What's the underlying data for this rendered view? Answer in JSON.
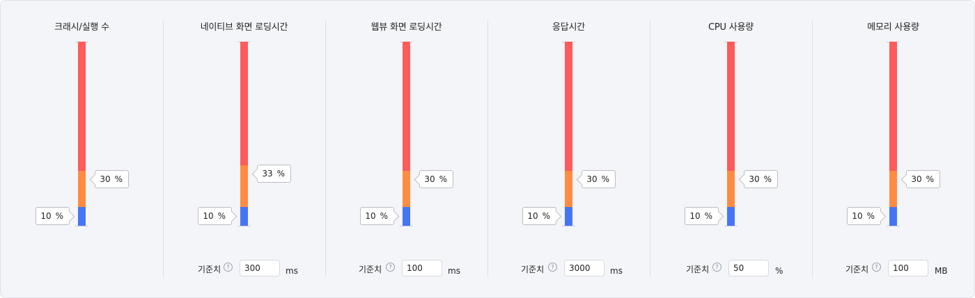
{
  "metrics": [
    {
      "title": "크래시/실행 수",
      "orange_value": "30",
      "blue_value": "10",
      "unit_pct": "%",
      "threshold": null
    },
    {
      "title": "네이티브 화면 로딩시간",
      "orange_value": "33",
      "blue_value": "10",
      "unit_pct": "%",
      "threshold": {
        "label": "기준치",
        "help": "?",
        "value": "300",
        "unit": "ms"
      }
    },
    {
      "title": "웹뷰 화면 로딩시간",
      "orange_value": "30",
      "blue_value": "10",
      "unit_pct": "%",
      "threshold": {
        "label": "기준치",
        "help": "?",
        "value": "100",
        "unit": "ms"
      }
    },
    {
      "title": "응답시간",
      "orange_value": "30",
      "blue_value": "10",
      "unit_pct": "%",
      "threshold": {
        "label": "기준치",
        "help": "?",
        "value": "3000",
        "unit": "ms"
      }
    },
    {
      "title": "CPU 사용량",
      "orange_value": "30",
      "blue_value": "10",
      "unit_pct": "%",
      "threshold": {
        "label": "기준치",
        "help": "?",
        "value": "50",
        "unit": "%"
      }
    },
    {
      "title": "메모리 사용량",
      "orange_value": "30",
      "blue_value": "10",
      "unit_pct": "%",
      "threshold": {
        "label": "기준치",
        "help": "?",
        "value": "100",
        "unit": "MB"
      }
    }
  ],
  "colors": {
    "red": "#fe5b5b",
    "orange": "#ff8c42",
    "blue": "#4575f6"
  }
}
